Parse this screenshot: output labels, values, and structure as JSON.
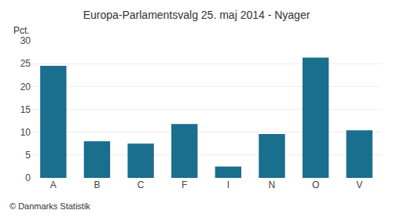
{
  "chart_data": {
    "type": "bar",
    "title": "Europa-Parlamentsvalg 25. maj 2014 - Nyager",
    "categories": [
      "A",
      "B",
      "C",
      "F",
      "I",
      "N",
      "O",
      "V"
    ],
    "values": [
      24.5,
      8.0,
      7.5,
      11.8,
      2.5,
      9.6,
      26.3,
      10.4
    ],
    "color": "#1a6e8e",
    "ylabel": "Pct.",
    "ylim": [
      0,
      30
    ],
    "yticks": [
      0,
      5,
      10,
      15,
      20,
      25,
      30
    ],
    "grid": true,
    "annotations": [
      "© Danmarks Statistik"
    ]
  }
}
